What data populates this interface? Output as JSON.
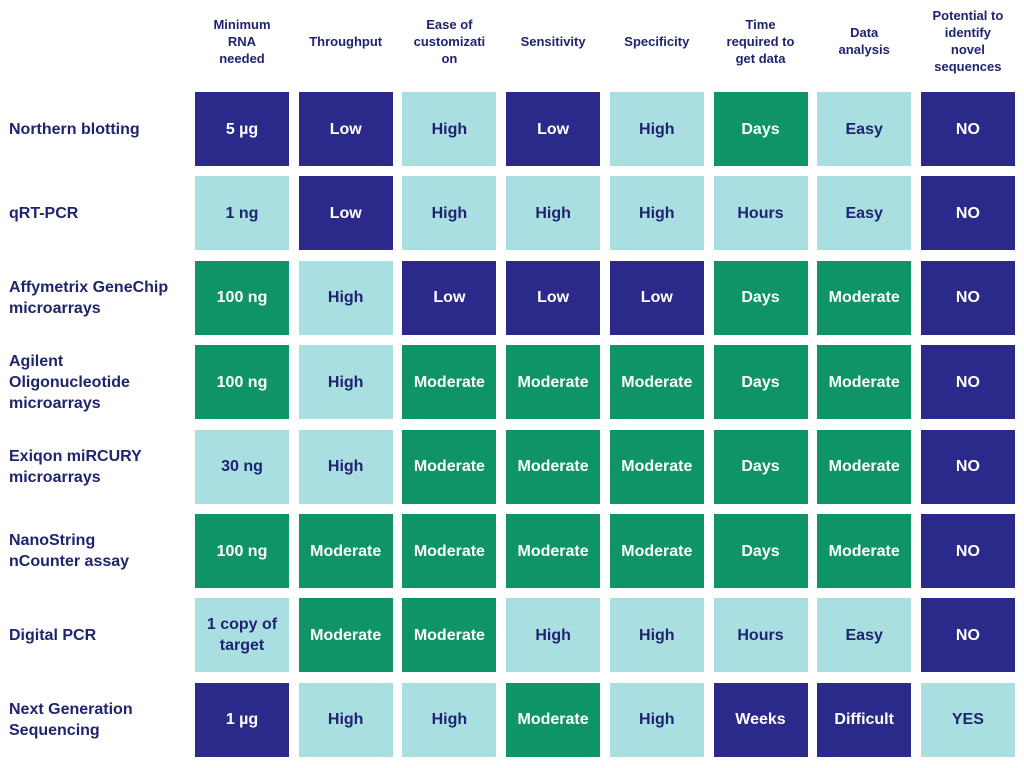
{
  "header": {
    "columns": [
      "Minimum\nRNA\nneeded",
      "Throughput",
      "Ease of\ncustomizati\non",
      "Sensitivity",
      "Specificity",
      "Time\nrequired to\nget data",
      "Data\nanalysis",
      "Potential to\nidentify\nnovel\nsequences"
    ]
  },
  "rows": [
    {
      "label": "Northern blotting",
      "cells": [
        {
          "text": "5 µg",
          "color": "#2b2a8a"
        },
        {
          "text": "Low",
          "color": "#2b2a8a"
        },
        {
          "text": "High",
          "color": "#a9dfe1"
        },
        {
          "text": "Low",
          "color": "#2b2a8a"
        },
        {
          "text": "High",
          "color": "#a9dfe1"
        },
        {
          "text": "Days",
          "color": "#0f9467"
        },
        {
          "text": "Easy",
          "color": "#a9dfe1"
        },
        {
          "text": "NO",
          "color": "#2b2a8a"
        }
      ]
    },
    {
      "label": "qRT-PCR",
      "cells": [
        {
          "text": "1 ng",
          "color": "#a9dfe1"
        },
        {
          "text": "Low",
          "color": "#2b2a8a"
        },
        {
          "text": "High",
          "color": "#a9dfe1"
        },
        {
          "text": "High",
          "color": "#a9dfe1"
        },
        {
          "text": "High",
          "color": "#a9dfe1"
        },
        {
          "text": "Hours",
          "color": "#a9dfe1"
        },
        {
          "text": "Easy",
          "color": "#a9dfe1"
        },
        {
          "text": "NO",
          "color": "#2b2a8a"
        }
      ]
    },
    {
      "label": "Affymetrix GeneChip\nmicroarrays",
      "cells": [
        {
          "text": "100 ng",
          "color": "#0f9467"
        },
        {
          "text": "High",
          "color": "#a9dfe1"
        },
        {
          "text": "Low",
          "color": "#2b2a8a"
        },
        {
          "text": "Low",
          "color": "#2b2a8a"
        },
        {
          "text": "Low",
          "color": "#2b2a8a"
        },
        {
          "text": "Days",
          "color": "#0f9467"
        },
        {
          "text": "Moderate",
          "color": "#0f9467"
        },
        {
          "text": "NO",
          "color": "#2b2a8a"
        }
      ]
    },
    {
      "label": "Agilent\nOligonucleotide\nmicroarrays",
      "cells": [
        {
          "text": "100 ng",
          "color": "#0f9467"
        },
        {
          "text": "High",
          "color": "#a9dfe1"
        },
        {
          "text": "Moderate",
          "color": "#0f9467"
        },
        {
          "text": "Moderate",
          "color": "#0f9467"
        },
        {
          "text": "Moderate",
          "color": "#0f9467"
        },
        {
          "text": "Days",
          "color": "#0f9467"
        },
        {
          "text": "Moderate",
          "color": "#0f9467"
        },
        {
          "text": "NO",
          "color": "#2b2a8a"
        }
      ]
    },
    {
      "label": "Exiqon miRCURY\nmicroarrays",
      "cells": [
        {
          "text": "30 ng",
          "color": "#a9dfe1"
        },
        {
          "text": "High",
          "color": "#a9dfe1"
        },
        {
          "text": "Moderate",
          "color": "#0f9467"
        },
        {
          "text": "Moderate",
          "color": "#0f9467"
        },
        {
          "text": "Moderate",
          "color": "#0f9467"
        },
        {
          "text": "Days",
          "color": "#0f9467"
        },
        {
          "text": "Moderate",
          "color": "#0f9467"
        },
        {
          "text": "NO",
          "color": "#2b2a8a"
        }
      ]
    },
    {
      "label": "NanoString\nnCounter assay",
      "cells": [
        {
          "text": "100 ng",
          "color": "#0f9467"
        },
        {
          "text": "Moderate",
          "color": "#0f9467"
        },
        {
          "text": "Moderate",
          "color": "#0f9467"
        },
        {
          "text": "Moderate",
          "color": "#0f9467"
        },
        {
          "text": "Moderate",
          "color": "#0f9467"
        },
        {
          "text": "Days",
          "color": "#0f9467"
        },
        {
          "text": "Moderate",
          "color": "#0f9467"
        },
        {
          "text": "NO",
          "color": "#2b2a8a"
        }
      ]
    },
    {
      "label": "Digital PCR",
      "cells": [
        {
          "text": "1 copy of\ntarget",
          "color": "#a9dfe1"
        },
        {
          "text": "Moderate",
          "color": "#0f9467"
        },
        {
          "text": "Moderate",
          "color": "#0f9467"
        },
        {
          "text": "High",
          "color": "#a9dfe1"
        },
        {
          "text": "High",
          "color": "#a9dfe1"
        },
        {
          "text": "Hours",
          "color": "#a9dfe1"
        },
        {
          "text": "Easy",
          "color": "#a9dfe1"
        },
        {
          "text": "NO",
          "color": "#2b2a8a"
        }
      ]
    },
    {
      "label": "Next Generation\nSequencing",
      "cells": [
        {
          "text": "1 µg",
          "color": "#2b2a8a"
        },
        {
          "text": "High",
          "color": "#a9dfe1"
        },
        {
          "text": "High",
          "color": "#a9dfe1"
        },
        {
          "text": "Moderate",
          "color": "#0f9467"
        },
        {
          "text": "High",
          "color": "#a9dfe1"
        },
        {
          "text": "Weeks",
          "color": "#2b2a8a"
        },
        {
          "text": "Difficult",
          "color": "#2b2a8a"
        },
        {
          "text": "YES",
          "color": "#a9dfe1"
        }
      ]
    }
  ]
}
